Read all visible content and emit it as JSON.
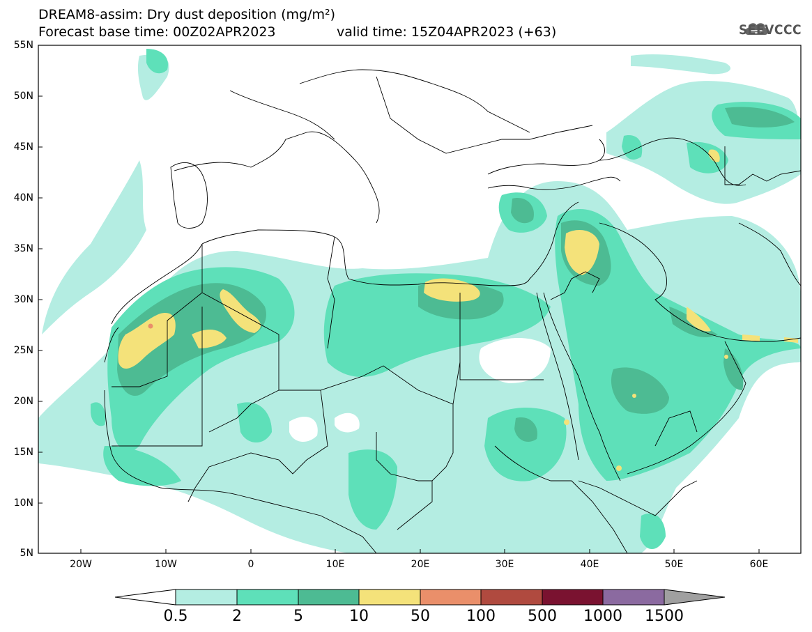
{
  "title": {
    "line1": "DREAM8-assim: Dry dust deposition (mg/m²)",
    "line2": "Forecast base time: 00Z02APR2023",
    "valid": "valid time: 15Z04APR2023 (+63)"
  },
  "logo": {
    "text": "SEEVCCC",
    "icon": "cloud-icon"
  },
  "axes": {
    "lat_labels": [
      "55N",
      "50N",
      "45N",
      "40N",
      "35N",
      "30N",
      "25N",
      "20N",
      "15N",
      "10N",
      "5N"
    ],
    "lon_labels": [
      "20W",
      "10W",
      "0",
      "10E",
      "20E",
      "30E",
      "40E",
      "50E",
      "60E"
    ]
  },
  "colorbar": {
    "labels": [
      "0.5",
      "2",
      "5",
      "10",
      "50",
      "100",
      "500",
      "1000",
      "1500"
    ],
    "colors": [
      "#b4ede2",
      "#5ee0b9",
      "#4dbb93",
      "#f4e27a",
      "#ea8f6a",
      "#b04a3f",
      "#7a1230",
      "#8b6aa0",
      "#a0a0a0"
    ]
  },
  "map_colors": {
    "level1": "#b4ede2",
    "level2": "#5ee0b9",
    "level3": "#4dbb93",
    "level4": "#f4e27a",
    "level5": "#ea8f6a"
  }
}
